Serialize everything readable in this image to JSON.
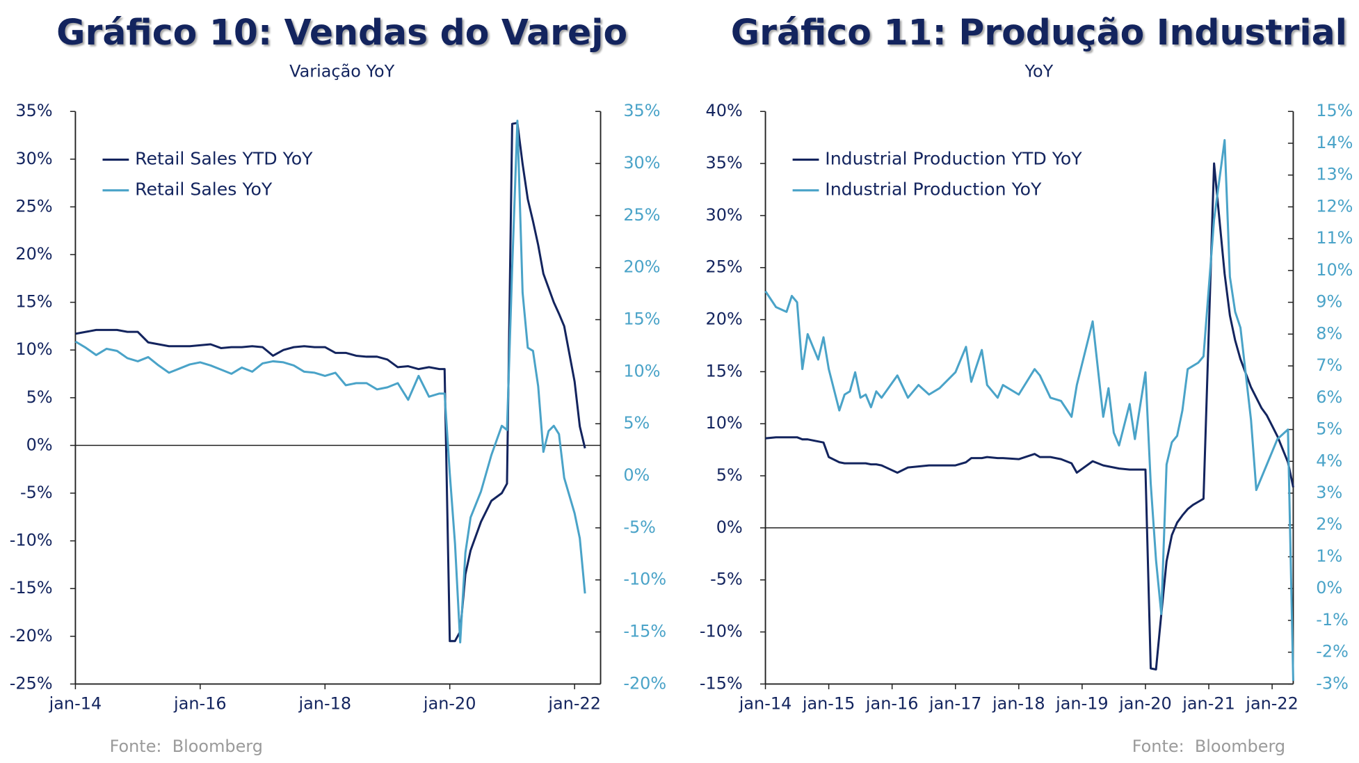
{
  "chart_data": [
    {
      "type": "line",
      "title": "Gráfico 10: Vendas do Varejo",
      "subtitle": "Variação YoY",
      "source": "Fonte:  Bloomberg",
      "legend": "upper left",
      "x": [
        "2014-01",
        "2014-03",
        "2014-05",
        "2014-07",
        "2014-09",
        "2014-11",
        "2015-01",
        "2015-03",
        "2015-05",
        "2015-07",
        "2015-09",
        "2015-11",
        "2016-01",
        "2016-03",
        "2016-05",
        "2016-07",
        "2016-09",
        "2016-11",
        "2017-01",
        "2017-03",
        "2017-05",
        "2017-07",
        "2017-09",
        "2017-11",
        "2018-01",
        "2018-03",
        "2018-05",
        "2018-07",
        "2018-09",
        "2018-11",
        "2019-01",
        "2019-03",
        "2019-05",
        "2019-07",
        "2019-09",
        "2019-11",
        "2019-12",
        "2020-01",
        "2020-02",
        "2020-03",
        "2020-04",
        "2020-05",
        "2020-07",
        "2020-09",
        "2020-11",
        "2020-12",
        "2021-01",
        "2021-02",
        "2021-03",
        "2021-04",
        "2021-05",
        "2021-06",
        "2021-07",
        "2021-08",
        "2021-09",
        "2021-10",
        "2021-11",
        "2022-01",
        "2022-02",
        "2022-03"
      ],
      "xlim": [
        "2014-01",
        "2022-06"
      ],
      "xticks": [
        {
          "value": "2014-01",
          "label": "jan-14"
        },
        {
          "value": "2016-01",
          "label": "jan-16"
        },
        {
          "value": "2018-01",
          "label": "jan-18"
        },
        {
          "value": "2020-01",
          "label": "jan-20"
        },
        {
          "value": "2022-01",
          "label": "jan-22"
        }
      ],
      "ylim": [
        -25,
        35
      ],
      "yticks": [
        {
          "value": -25,
          "label": "-25%"
        },
        {
          "value": -20,
          "label": "-20%"
        },
        {
          "value": -15,
          "label": "-15%"
        },
        {
          "value": -10,
          "label": "-10%"
        },
        {
          "value": -5,
          "label": "-5%"
        },
        {
          "value": 0,
          "label": "0%"
        },
        {
          "value": 5,
          "label": "5%"
        },
        {
          "value": 10,
          "label": "10%"
        },
        {
          "value": 15,
          "label": "15%"
        },
        {
          "value": 20,
          "label": "20%"
        },
        {
          "value": 25,
          "label": "25%"
        },
        {
          "value": 30,
          "label": "30%"
        },
        {
          "value": 35,
          "label": "35%"
        }
      ],
      "y2lim": [
        -20,
        35
      ],
      "y2ticks": [
        {
          "value": -20,
          "label": "-20%"
        },
        {
          "value": -15,
          "label": "-15%"
        },
        {
          "value": -10,
          "label": "-10%"
        },
        {
          "value": -5,
          "label": "-5%"
        },
        {
          "value": 0,
          "label": "0%"
        },
        {
          "value": 5,
          "label": "5%"
        },
        {
          "value": 10,
          "label": "10%"
        },
        {
          "value": 15,
          "label": "15%"
        },
        {
          "value": 20,
          "label": "20%"
        },
        {
          "value": 25,
          "label": "25%"
        },
        {
          "value": 30,
          "label": "30%"
        },
        {
          "value": 35,
          "label": "35%"
        }
      ],
      "series": [
        {
          "name": "Retail Sales YTD YoY",
          "color": "#13245e",
          "values": [
            11.7,
            11.9,
            12.1,
            12.1,
            12.1,
            11.9,
            11.9,
            10.8,
            10.6,
            10.4,
            10.4,
            10.4,
            10.5,
            10.6,
            10.2,
            10.3,
            10.3,
            10.4,
            10.3,
            9.4,
            10.0,
            10.3,
            10.4,
            10.3,
            10.3,
            9.7,
            9.7,
            9.4,
            9.3,
            9.3,
            9.0,
            8.2,
            8.3,
            8.0,
            8.2,
            8.0,
            8.0,
            -20.5,
            -20.5,
            -19.5,
            -13.5,
            -11.0,
            -8.0,
            -5.8,
            -5.0,
            -4.0,
            33.7,
            33.8,
            29.5,
            25.8,
            23.5,
            21.0,
            18.0,
            16.5,
            15.0,
            13.8,
            12.5,
            6.7,
            2.0,
            -0.3
          ]
        },
        {
          "name": "Retail Sales YoY",
          "color": "#4aa3c8",
          "axis": "y2",
          "values": [
            12.9,
            12.3,
            11.6,
            12.2,
            12.0,
            11.3,
            11.0,
            11.4,
            10.6,
            9.9,
            10.3,
            10.7,
            10.9,
            10.6,
            10.2,
            9.8,
            10.4,
            10.0,
            10.8,
            11.0,
            10.9,
            10.6,
            10.0,
            9.9,
            9.6,
            9.9,
            8.7,
            8.9,
            8.9,
            8.3,
            8.5,
            8.9,
            7.3,
            9.6,
            7.6,
            7.9,
            7.9,
            0.2,
            -6.5,
            -16.0,
            -7.4,
            -4.0,
            -1.5,
            2.0,
            4.8,
            4.4,
            20.0,
            34.1,
            17.6,
            12.3,
            12.0,
            8.6,
            2.3,
            4.3,
            4.8,
            4.0,
            -0.2,
            -3.6,
            -6.0,
            -11.3
          ]
        }
      ]
    },
    {
      "type": "line",
      "title": "Gráfico 11: Produção Industrial",
      "subtitle": "YoY",
      "source": "Fonte:  Bloomberg",
      "legend": "upper left",
      "x": [
        "2014-01",
        "2014-03",
        "2014-05",
        "2014-06",
        "2014-07",
        "2014-08",
        "2014-09",
        "2014-11",
        "2014-12",
        "2015-01",
        "2015-03",
        "2015-04",
        "2015-05",
        "2015-06",
        "2015-07",
        "2015-08",
        "2015-09",
        "2015-10",
        "2015-11",
        "2016-02",
        "2016-04",
        "2016-06",
        "2016-08",
        "2016-10",
        "2017-01",
        "2017-03",
        "2017-04",
        "2017-06",
        "2017-07",
        "2017-09",
        "2017-10",
        "2018-01",
        "2018-04",
        "2018-05",
        "2018-07",
        "2018-09",
        "2018-11",
        "2018-12",
        "2019-03",
        "2019-05",
        "2019-06",
        "2019-07",
        "2019-08",
        "2019-10",
        "2019-11",
        "2020-01",
        "2020-02",
        "2020-03",
        "2020-04",
        "2020-05",
        "2020-06",
        "2020-07",
        "2020-08",
        "2020-09",
        "2020-10",
        "2020-11",
        "2020-12",
        "2021-02",
        "2021-04",
        "2021-05",
        "2021-06",
        "2021-07",
        "2021-09",
        "2021-10",
        "2021-11",
        "2021-12",
        "2022-01",
        "2022-02",
        "2022-04",
        "2022-05"
      ],
      "xlim": [
        "2014-01",
        "2022-05"
      ],
      "xticks": [
        {
          "value": "2014-01",
          "label": "jan-14"
        },
        {
          "value": "2015-01",
          "label": "jan-15"
        },
        {
          "value": "2016-01",
          "label": "jan-16"
        },
        {
          "value": "2017-01",
          "label": "jan-17"
        },
        {
          "value": "2018-01",
          "label": "jan-18"
        },
        {
          "value": "2019-01",
          "label": "jan-19"
        },
        {
          "value": "2020-01",
          "label": "jan-20"
        },
        {
          "value": "2021-01",
          "label": "jan-21"
        },
        {
          "value": "2022-01",
          "label": "jan-22"
        }
      ],
      "ylim": [
        -15,
        40
      ],
      "yticks": [
        {
          "value": -15,
          "label": "-15%"
        },
        {
          "value": -10,
          "label": "-10%"
        },
        {
          "value": -5,
          "label": "-5%"
        },
        {
          "value": 0,
          "label": "0%"
        },
        {
          "value": 5,
          "label": "5%"
        },
        {
          "value": 10,
          "label": "10%"
        },
        {
          "value": 15,
          "label": "15%"
        },
        {
          "value": 20,
          "label": "20%"
        },
        {
          "value": 25,
          "label": "25%"
        },
        {
          "value": 30,
          "label": "30%"
        },
        {
          "value": 35,
          "label": "35%"
        },
        {
          "value": 40,
          "label": "40%"
        }
      ],
      "y2lim": [
        -3,
        15
      ],
      "y2ticks": [
        {
          "value": -3,
          "label": "-3%"
        },
        {
          "value": -2,
          "label": "-2%"
        },
        {
          "value": -1,
          "label": "-1%"
        },
        {
          "value": 0,
          "label": "0%"
        },
        {
          "value": 1,
          "label": "1%"
        },
        {
          "value": 2,
          "label": "2%"
        },
        {
          "value": 3,
          "label": "3%"
        },
        {
          "value": 4,
          "label": "4%"
        },
        {
          "value": 5,
          "label": "5%"
        },
        {
          "value": 6,
          "label": "6%"
        },
        {
          "value": 7,
          "label": "7%"
        },
        {
          "value": 8,
          "label": "8%"
        },
        {
          "value": 9,
          "label": "9%"
        },
        {
          "value": 10,
          "label": "10%"
        },
        {
          "value": 11,
          "label": "11%"
        },
        {
          "value": 12,
          "label": "12%"
        },
        {
          "value": 13,
          "label": "13%"
        },
        {
          "value": 14,
          "label": "14%"
        },
        {
          "value": 15,
          "label": "15%"
        }
      ],
      "series": [
        {
          "name": "Industrial Production YTD YoY",
          "color": "#13245e",
          "values": [
            8.6,
            8.7,
            8.7,
            8.7,
            8.7,
            8.5,
            8.5,
            8.3,
            8.2,
            6.8,
            6.3,
            6.2,
            6.2,
            6.2,
            6.2,
            6.2,
            6.1,
            6.1,
            6.0,
            5.3,
            5.8,
            5.9,
            6.0,
            6.0,
            6.0,
            6.3,
            6.7,
            6.7,
            6.8,
            6.7,
            6.7,
            6.6,
            7.1,
            6.8,
            6.8,
            6.6,
            6.2,
            5.3,
            6.4,
            6.0,
            5.9,
            5.8,
            5.7,
            5.6,
            5.6,
            5.6,
            -13.5,
            -13.6,
            -8.3,
            -3.2,
            -0.7,
            0.5,
            1.2,
            1.8,
            2.2,
            2.5,
            2.8,
            35.0,
            24.4,
            20.4,
            18.0,
            16.2,
            13.5,
            12.5,
            11.5,
            10.8,
            9.8,
            8.8,
            6.3,
            3.9
          ]
        },
        {
          "name": "Industrial Production YoY",
          "color": "#4aa3c8",
          "axis": "y2",
          "values": [
            9.35,
            8.85,
            8.7,
            9.2,
            9.0,
            6.9,
            8.0,
            7.2,
            7.9,
            6.9,
            5.6,
            6.1,
            6.2,
            6.8,
            6.0,
            6.1,
            5.7,
            6.2,
            6.0,
            6.7,
            6.0,
            6.4,
            6.1,
            6.3,
            6.8,
            7.6,
            6.5,
            7.5,
            6.4,
            6.0,
            6.4,
            6.1,
            6.9,
            6.7,
            6.0,
            5.9,
            5.4,
            6.4,
            8.4,
            5.4,
            6.3,
            4.9,
            4.5,
            5.8,
            4.7,
            6.8,
            3.3,
            0.9,
            -0.8,
            3.9,
            4.6,
            4.8,
            5.6,
            6.9,
            7.0,
            7.1,
            7.3,
            11.6,
            14.1,
            9.8,
            8.7,
            8.2,
            5.3,
            3.1,
            3.5,
            3.9,
            4.3,
            4.7,
            5.0,
            -2.9
          ]
        }
      ]
    }
  ]
}
